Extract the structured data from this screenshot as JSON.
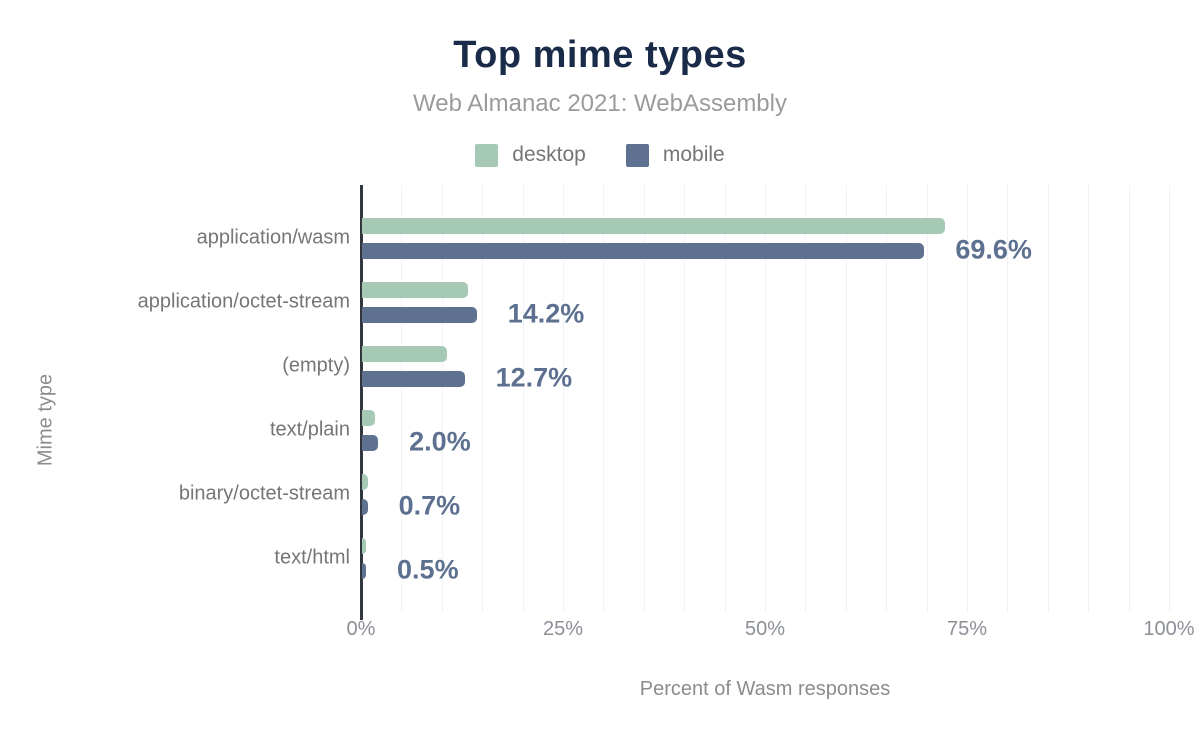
{
  "header": {
    "title": "Top mime types",
    "subtitle": "Web Almanac 2021: WebAssembly"
  },
  "colors": {
    "title": "#1a2b49",
    "subtitle": "#9b9b9b",
    "desktop": "#a6c9b6",
    "mobile": "#5e7190",
    "value_label": "#5d7090",
    "axis_line": "#32373e",
    "gridline": "#f1f2f3",
    "axis_text": "#8b8f96"
  },
  "chart_data": {
    "type": "bar",
    "orientation": "horizontal",
    "title": "Top mime types",
    "subtitle": "Web Almanac 2021: WebAssembly",
    "categories": [
      "application/wasm",
      "application/octet-stream",
      "(empty)",
      "text/plain",
      "binary/octet-stream",
      "text/html"
    ],
    "series": [
      {
        "name": "desktop",
        "color": "#a6c9b6",
        "values": [
          72.1,
          13.1,
          10.5,
          1.6,
          0.7,
          0.5
        ]
      },
      {
        "name": "mobile",
        "color": "#5e7190",
        "values": [
          69.6,
          14.2,
          12.7,
          2.0,
          0.7,
          0.5
        ]
      }
    ],
    "value_labels": [
      "69.6%",
      "14.2%",
      "12.7%",
      "2.0%",
      "0.7%",
      "0.5%"
    ],
    "value_labels_source": "mobile series",
    "xlabel": "Percent of Wasm responses",
    "ylabel": "Mime type",
    "x_ticks": [
      "0%",
      "25%",
      "50%",
      "75%",
      "100%"
    ],
    "x_tick_values": [
      0,
      25,
      50,
      75,
      100
    ],
    "xlim": [
      0,
      100
    ],
    "grid": "vertical every 5%",
    "legend_position": "top"
  }
}
